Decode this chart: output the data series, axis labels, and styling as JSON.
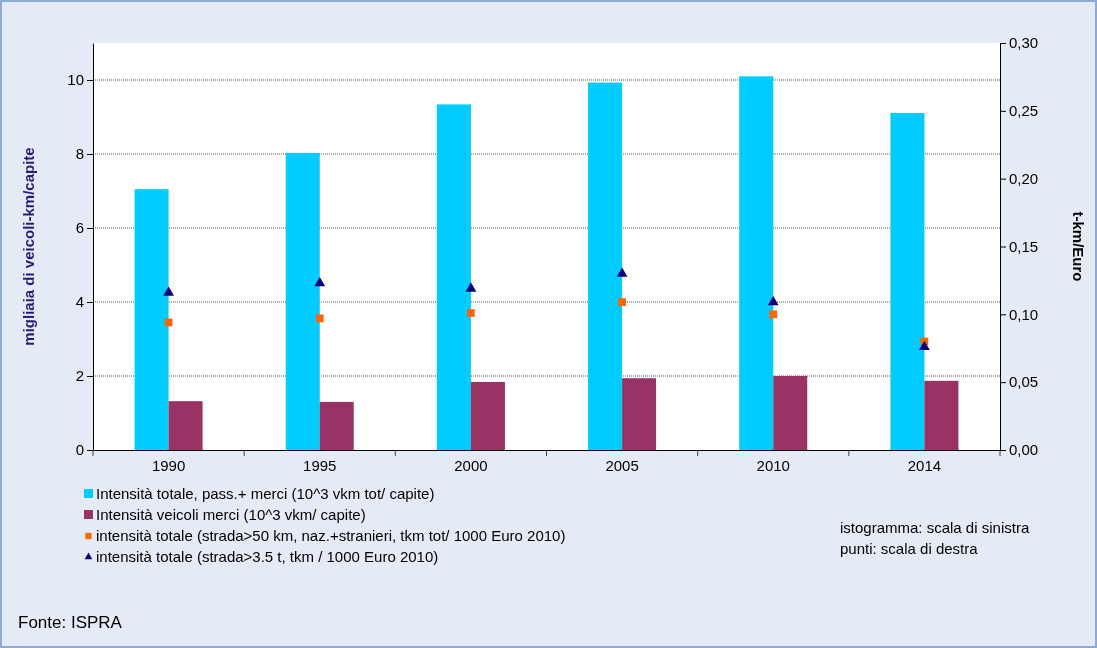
{
  "chart_data": {
    "type": "bar",
    "ylabel": "migliaia di veicoli-km/capite",
    "y2label": "t-km/Euro",
    "categories": [
      "1990",
      "1995",
      "2000",
      "2005",
      "2010",
      "2014"
    ],
    "ylim": [
      0,
      11
    ],
    "yticks": [
      0,
      2,
      4,
      6,
      8,
      10
    ],
    "y2lim": [
      0,
      0.3
    ],
    "y2ticks": [
      {
        "value": 0,
        "label": "0,00"
      },
      {
        "value": 0.05,
        "label": "0,05"
      },
      {
        "value": 0.1,
        "label": "0,10"
      },
      {
        "value": 0.15,
        "label": "0,15"
      },
      {
        "value": 0.2,
        "label": "0,20"
      },
      {
        "value": 0.25,
        "label": "0,25"
      },
      {
        "value": 0.3,
        "label": "0,30"
      }
    ],
    "grid": "y",
    "legend": "bottom",
    "series": [
      {
        "name": "Intensità totale, pass.+ merci  (10^3 vkm tot/ capite)",
        "color": "#00ccff",
        "values": [
          7.05,
          8.03,
          9.34,
          9.93,
          10.1,
          9.11
        ]
      },
      {
        "name": "Intensità veicoli merci  (10^3 vkm/ capite)",
        "color": "#993366",
        "values": [
          1.32,
          1.3,
          1.84,
          1.94,
          2.0,
          1.87
        ]
      },
      {
        "name": "intensità totale (strada>50 km, naz.+stranieri, tkm tot/ 1000 Euro 2010)",
        "type": "scatter",
        "axis": "y2",
        "marker": "square",
        "color": "#ff6600",
        "values": [
          0.094,
          0.097,
          0.101,
          0.109,
          0.1,
          0.08
        ]
      },
      {
        "name": "intensità totale (strada>3.5 t, tkm / 1000 Euro 2010)",
        "type": "scatter",
        "axis": "y2",
        "marker": "triangle",
        "color": "#000080",
        "values": [
          0.116,
          0.123,
          0.119,
          0.13,
          0.109,
          0.076
        ]
      }
    ],
    "annotations": [
      "istogramma: scala di sinistra",
      "punti: scala di destra",
      "Fonte: ISPRA"
    ]
  }
}
